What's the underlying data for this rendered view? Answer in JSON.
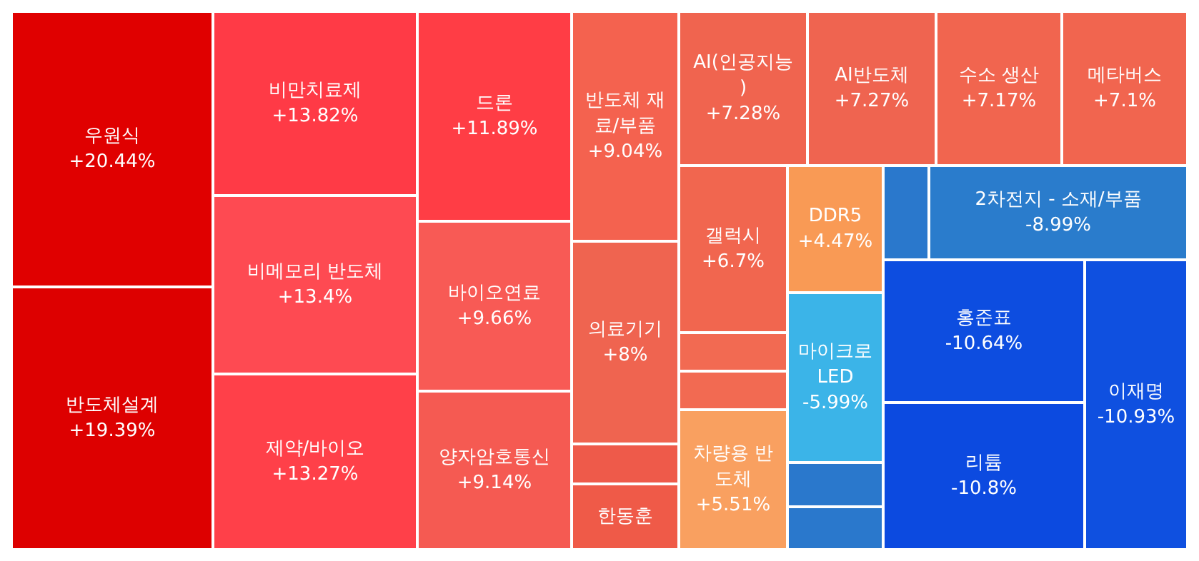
{
  "chart_data": {
    "type": "other",
    "categories": [
      "우원식",
      "반도체설계",
      "비만치료제",
      "비메모리 반도체",
      "제약/바이오",
      "드론",
      "바이오연료",
      "양자암호통신",
      "반도체 재료/부품",
      "의료기기",
      null,
      "한동훈",
      "AI(인공지능)",
      "AI반도체",
      "수소 생산",
      "메타버스",
      "갤럭시",
      null,
      null,
      "차량용 반도체",
      "DDR5",
      "마이크로LED",
      null,
      null,
      null,
      "2차전지 - 소재/부품",
      "홍준표",
      "리튬",
      "이재명"
    ],
    "values": [
      20.44,
      19.39,
      13.82,
      13.4,
      13.27,
      11.89,
      9.66,
      9.14,
      9.04,
      8,
      null,
      null,
      7.28,
      7.27,
      7.17,
      7.1,
      6.7,
      null,
      null,
      5.51,
      4.47,
      -5.99,
      null,
      null,
      null,
      -8.99,
      -10.64,
      -10.8,
      -10.93
    ],
    "value_labels": [
      "+20.44%",
      "+19.39%",
      "+13.82%",
      "+13.4%",
      "+13.27%",
      "+11.89%",
      "+9.66%",
      "+9.14%",
      "+9.04%",
      "+8%",
      null,
      null,
      "+7.28%",
      "+7.27%",
      "+7.17%",
      "+7.1%",
      "+6.7%",
      null,
      null,
      "+5.51%",
      "+4.47%",
      "-5.99%",
      null,
      null,
      null,
      "-8.99%",
      "-10.64%",
      "-10.8%",
      "-10.93%"
    ],
    "colors": [
      "#e00000",
      "#dd0000",
      "#ff3a46",
      "#fe4a52",
      "#ff4049",
      "#ff3d45",
      "#f85a55",
      "#f55a52",
      "#f4624f",
      "#ef6450",
      "#ee5a4a",
      "#ef5a48",
      "#f0644f",
      "#ef6450",
      "#f1654f",
      "#f1654f",
      "#f1664f",
      "#f26a52",
      "#f26a52",
      "#f9a060",
      "#f99a55",
      "#3bb4e8",
      "#2a78cc",
      "#2a78cc",
      "#2a78cc",
      "#2a7ccc",
      "#0d4de0",
      "#0c4ae0",
      "#0f50e0"
    ]
  }
}
